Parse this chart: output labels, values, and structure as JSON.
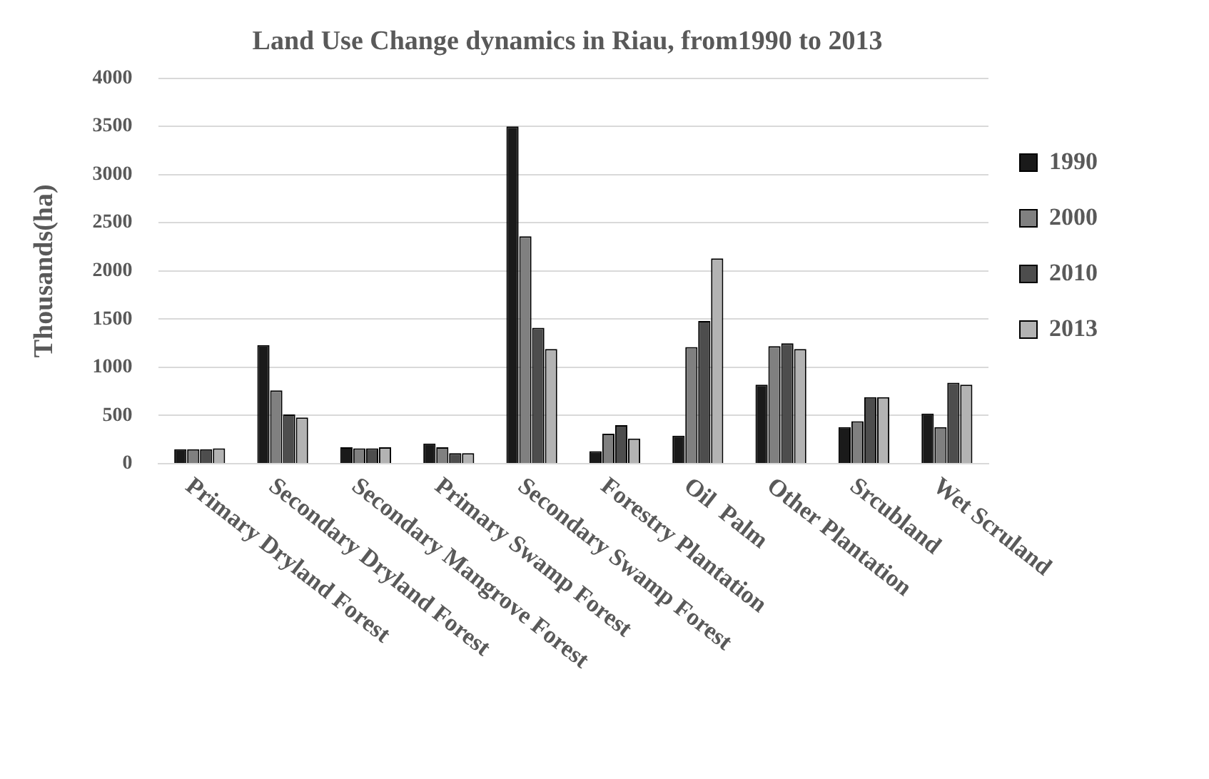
{
  "chart_data": {
    "type": "bar",
    "title": "Land Use Change dynamics in Riau, from1990 to 2013",
    "ylabel": "Thousands(ha)",
    "categories": [
      "Primary Dryland Forest",
      "Secondary Dryland Forest",
      "Secondary Mangrove Forest",
      "Primary Swamp Forest",
      "Secondary Swamp Forest",
      "Forestry Plantation",
      "Oil  Palm",
      "Other Plantation",
      "Srcubland",
      "Wet Scruland"
    ],
    "series": [
      {
        "name": "1990",
        "color": "#1a1a1a",
        "values": [
          150,
          1230,
          170,
          210,
          3500,
          130,
          290,
          820,
          380,
          520
        ]
      },
      {
        "name": "2000",
        "color": "#808080",
        "values": [
          150,
          760,
          160,
          170,
          2360,
          310,
          1210,
          1220,
          440,
          380
        ]
      },
      {
        "name": "2010",
        "color": "#4d4d4d",
        "values": [
          150,
          510,
          160,
          110,
          1410,
          400,
          1480,
          1250,
          690,
          840
        ]
      },
      {
        "name": "2013",
        "color": "#b3b3b3",
        "values": [
          160,
          480,
          170,
          110,
          1190,
          260,
          2130,
          1190,
          690,
          820
        ]
      }
    ],
    "ylim": [
      0,
      4000
    ],
    "yticks": [
      0,
      500,
      1000,
      1500,
      2000,
      2500,
      3000,
      3500,
      4000
    ],
    "grid": "y",
    "legend": "right"
  }
}
